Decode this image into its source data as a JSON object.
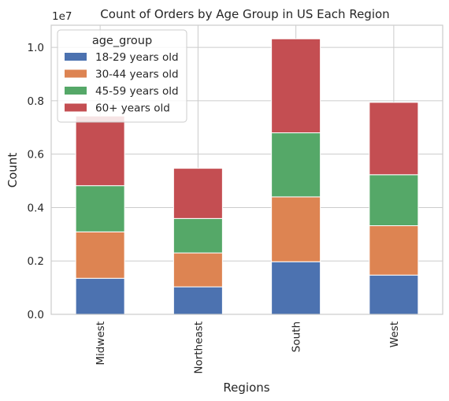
{
  "chart_data": {
    "type": "bar",
    "stacked": true,
    "title": "Count of Orders by Age Group in US Each Region",
    "xlabel": "Regions",
    "ylabel": "Count",
    "offset_text": "1e7",
    "categories": [
      "Midwest",
      "Northeast",
      "South",
      "West"
    ],
    "series": [
      {
        "name": "18-29 years old",
        "color": "#4c72b0",
        "values": [
          1350000,
          1030000,
          1970000,
          1470000
        ]
      },
      {
        "name": "30-44 years old",
        "color": "#dd8452",
        "values": [
          1740000,
          1270000,
          2430000,
          1850000
        ]
      },
      {
        "name": "45-59 years old",
        "color": "#55a868",
        "values": [
          1730000,
          1290000,
          2400000,
          1910000
        ]
      },
      {
        "name": "60+ years old",
        "color": "#c44e52",
        "values": [
          2610000,
          1880000,
          3520000,
          2710000
        ]
      }
    ],
    "yticks": [
      0,
      2000000,
      4000000,
      6000000,
      8000000,
      10000000
    ],
    "ytick_labels": [
      "0.0",
      "0.2",
      "0.4",
      "0.6",
      "0.8",
      "1.0"
    ],
    "ylim": [
      0,
      10830000
    ],
    "grid": true,
    "legend": {
      "title": "age_group",
      "placement": "upper-left"
    },
    "grid_color": "#cccccc",
    "frame_color": "#cccccc"
  }
}
